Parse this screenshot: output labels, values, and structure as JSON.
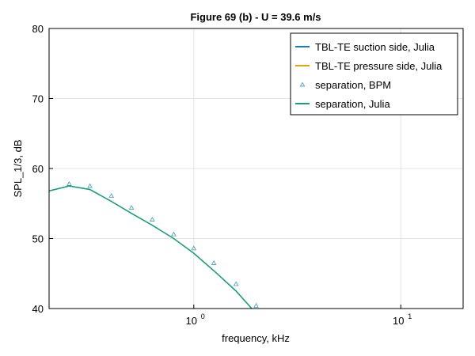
{
  "chart_data": {
    "type": "line",
    "title": "Figure 69 (b) - U = 39.6 m/s",
    "xlabel": "frequency, kHz",
    "ylabel": "SPL_1/3, dB",
    "xscale": "log",
    "xlim": [
      0.2,
      20
    ],
    "ylim": [
      40,
      80
    ],
    "grid": true,
    "legend_position": "top-right",
    "x_ticks": [
      {
        "value": 1,
        "base": "10",
        "exp": "0"
      },
      {
        "value": 10,
        "base": "10",
        "exp": "1"
      }
    ],
    "y_ticks": [
      40,
      50,
      60,
      70,
      80
    ],
    "series": [
      {
        "name": "TBL-TE suction side, Julia",
        "style": "line",
        "color": "#1f77b4",
        "x": [],
        "y": []
      },
      {
        "name": "TBL-TE pressure side, Julia",
        "style": "line",
        "color": "#e5a50a",
        "x": [],
        "y": []
      },
      {
        "name": "separation, BPM",
        "style": "triangle-markers",
        "color": "#3b9bb5",
        "x": [
          0.25,
          0.315,
          0.4,
          0.5,
          0.63,
          0.8,
          1.0,
          1.25,
          1.6,
          2.0
        ],
        "y": [
          57.8,
          57.5,
          56.1,
          54.4,
          52.7,
          50.6,
          48.6,
          46.5,
          43.5,
          40.4
        ]
      },
      {
        "name": "separation, Julia",
        "style": "line",
        "color": "#1a9e77",
        "x": [
          0.2,
          0.25,
          0.315,
          0.4,
          0.5,
          0.63,
          0.8,
          1.0,
          1.25,
          1.6,
          2.0
        ],
        "y": [
          56.8,
          57.5,
          57.0,
          55.3,
          53.6,
          51.9,
          50.0,
          47.9,
          45.4,
          42.5,
          39.3
        ]
      }
    ]
  }
}
